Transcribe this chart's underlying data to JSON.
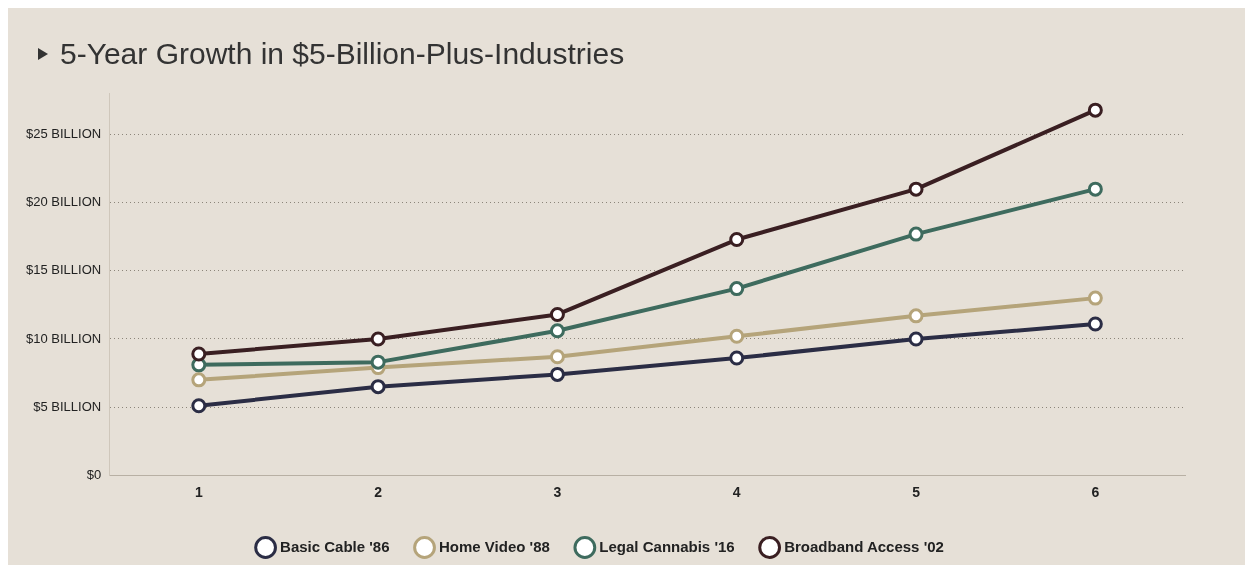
{
  "chart_data": {
    "type": "line",
    "title": "5-Year Growth in $5-Billion-Plus-Industries",
    "categories": [
      "1",
      "2",
      "3",
      "4",
      "5",
      "6"
    ],
    "series": [
      {
        "name": "Basic Cable '86",
        "color": "#2b2d45",
        "values": [
          5.1,
          6.5,
          7.4,
          8.6,
          10.0,
          11.1
        ]
      },
      {
        "name": "Home Video '88",
        "color": "#b5a47a",
        "values": [
          7.0,
          7.9,
          8.7,
          10.2,
          11.7,
          13.0
        ]
      },
      {
        "name": "Legal Cannabis '16",
        "color": "#3e6b5e",
        "values": [
          8.1,
          8.3,
          10.6,
          13.7,
          17.7,
          21.0
        ]
      },
      {
        "name": "Broadband Access '02",
        "color": "#3a1f22",
        "values": [
          8.9,
          10.0,
          11.8,
          17.3,
          21.0,
          26.8
        ]
      }
    ],
    "ylim": [
      0,
      28
    ],
    "yticks": [
      {
        "value": 0,
        "label": "$0"
      },
      {
        "value": 5,
        "label": "$5 BILLION"
      },
      {
        "value": 10,
        "label": "$10 BILLION"
      },
      {
        "value": 15,
        "label": "$15 BILLION"
      },
      {
        "value": 20,
        "label": "$20 BILLION"
      },
      {
        "value": 25,
        "label": "$25 BILLION"
      }
    ],
    "grid": "y",
    "legend": "bottom",
    "marker": "circle",
    "line_style": "solid"
  }
}
